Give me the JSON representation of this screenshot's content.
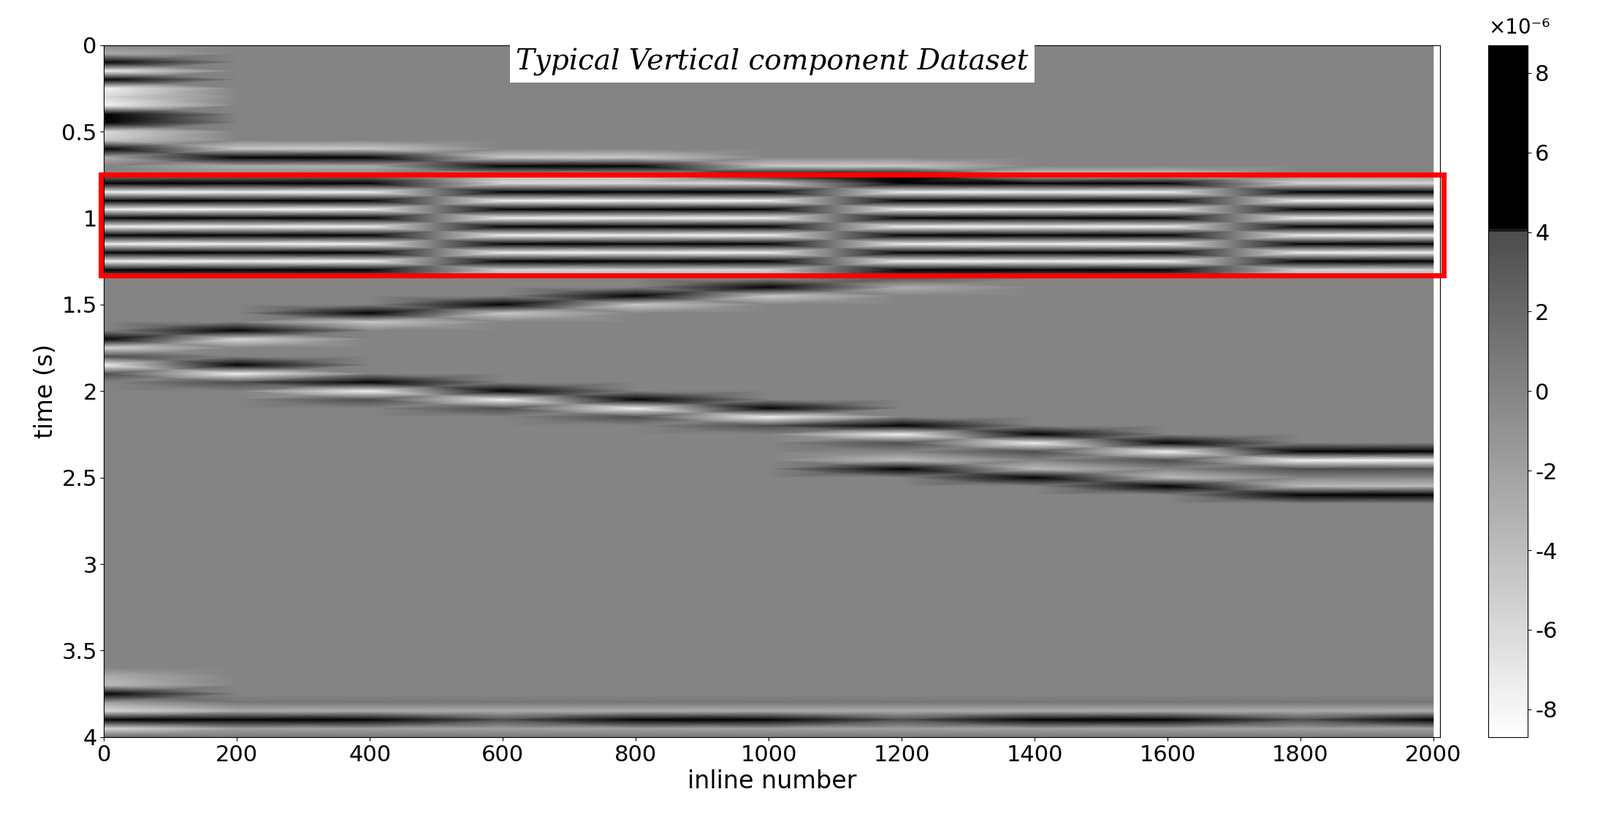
{
  "chart_data": {
    "type": "heatmap",
    "title": "Typical Vertical component Dataset",
    "x_label": "inline number",
    "y_label": "time (s)",
    "x": [
      0,
      200,
      400,
      600,
      800,
      1000,
      1200,
      1400,
      1600,
      1800,
      2000
    ],
    "y": [
      0,
      0.05,
      0.1,
      0.15,
      0.2,
      0.25,
      0.3,
      0.35,
      0.4,
      0.45,
      0.5,
      0.55,
      0.6,
      0.65,
      0.7,
      0.75,
      0.8,
      0.85,
      0.9,
      0.95,
      1,
      1.05,
      1.1,
      1.15,
      1.2,
      1.25,
      1.3,
      1.35,
      1.4,
      1.45,
      1.5,
      1.55,
      1.6,
      1.65,
      1.7,
      1.75,
      1.8,
      1.85,
      1.9,
      1.95,
      2,
      2.05,
      2.1,
      2.15,
      2.2,
      2.25,
      2.3,
      2.35,
      2.4,
      2.45,
      2.5,
      2.55,
      2.6,
      2.65,
      2.7,
      2.75,
      2.8,
      2.85,
      2.9,
      2.95,
      3,
      3.05,
      3.1,
      3.15,
      3.2,
      3.25,
      3.3,
      3.35,
      3.4,
      3.45,
      3.5,
      3.55,
      3.6,
      3.65,
      3.7,
      3.75,
      3.8,
      3.85,
      3.9,
      3.95,
      4
    ],
    "cells": [
      [
        0,
        0,
        0,
        0,
        0,
        0,
        0,
        0,
        0,
        0,
        0
      ],
      [
        -3,
        0,
        0,
        0,
        0,
        0,
        0,
        0,
        0,
        0,
        0
      ],
      [
        8,
        0,
        0,
        0,
        0,
        0,
        0,
        0,
        0,
        0,
        0
      ],
      [
        -8,
        0,
        0,
        0,
        0,
        0,
        0,
        0,
        0,
        0,
        0
      ],
      [
        8,
        0,
        0,
        0,
        0,
        0,
        0,
        0,
        0,
        0,
        0
      ],
      [
        -8,
        0,
        0,
        0,
        0,
        0,
        0,
        0,
        0,
        0,
        0
      ],
      [
        -6,
        0,
        0,
        0,
        0,
        0,
        0,
        0,
        0,
        0,
        0
      ],
      [
        -8,
        0,
        0,
        0,
        0,
        0,
        0,
        0,
        0,
        0,
        0
      ],
      [
        6,
        0,
        0,
        0,
        0,
        0,
        0,
        0,
        0,
        0,
        0
      ],
      [
        8,
        0,
        0,
        0,
        0,
        0,
        0,
        0,
        0,
        0,
        0
      ],
      [
        -6,
        0,
        0,
        0,
        0,
        0,
        0,
        0,
        0,
        0,
        0
      ],
      [
        -5,
        0,
        0,
        0,
        0,
        0,
        0,
        0,
        0,
        0,
        0
      ],
      [
        8,
        -5,
        -5,
        0,
        0,
        0,
        0,
        0,
        0,
        0,
        0
      ],
      [
        -3,
        8,
        8,
        -5,
        -5,
        0,
        0,
        0,
        0,
        0,
        0
      ],
      [
        0,
        -3,
        -3,
        8,
        8,
        -5,
        -5,
        0,
        0,
        0,
        0
      ],
      [
        0,
        0,
        0,
        -3,
        -3,
        8,
        8,
        -5,
        -5,
        0,
        0
      ],
      [
        6,
        6,
        6,
        -6,
        -6,
        -6,
        6,
        8,
        8,
        -6,
        -6
      ],
      [
        -8,
        -8,
        -8,
        8,
        8,
        8,
        -8,
        -8,
        -8,
        8,
        8
      ],
      [
        8,
        8,
        8,
        -8,
        -8,
        -8,
        8,
        8,
        8,
        -8,
        -8
      ],
      [
        -8,
        -8,
        -8,
        8,
        8,
        8,
        -8,
        -8,
        -8,
        8,
        8
      ],
      [
        8,
        8,
        8,
        -8,
        -8,
        -8,
        8,
        8,
        8,
        -8,
        -8
      ],
      [
        -8,
        -8,
        -8,
        8,
        8,
        8,
        -8,
        -8,
        -8,
        8,
        8
      ],
      [
        8,
        8,
        8,
        -8,
        -8,
        -8,
        8,
        8,
        8,
        -8,
        -8
      ],
      [
        -8,
        -8,
        -8,
        8,
        8,
        8,
        -8,
        -8,
        -8,
        8,
        8
      ],
      [
        8,
        8,
        8,
        -8,
        -8,
        -8,
        8,
        8,
        8,
        -8,
        -8
      ],
      [
        -8,
        -8,
        -8,
        8,
        8,
        8,
        -8,
        -8,
        -8,
        8,
        8
      ],
      [
        6,
        6,
        6,
        -6,
        -6,
        -6,
        6,
        6,
        6,
        -6,
        -6
      ],
      [
        0,
        0,
        0,
        0,
        0,
        0,
        3,
        0,
        0,
        0,
        0
      ],
      [
        0,
        0,
        0,
        0,
        0,
        6,
        -3,
        0,
        0,
        0,
        0
      ],
      [
        0,
        0,
        0,
        0,
        6,
        -5,
        0,
        0,
        0,
        0,
        0
      ],
      [
        0,
        0,
        0,
        6,
        -5,
        0,
        0,
        0,
        0,
        0,
        0
      ],
      [
        0,
        0,
        7,
        -5,
        0,
        0,
        0,
        0,
        0,
        0,
        0
      ],
      [
        0,
        0,
        -5,
        0,
        0,
        0,
        0,
        0,
        0,
        0,
        0
      ],
      [
        0,
        8,
        0,
        0,
        0,
        0,
        0,
        0,
        0,
        0,
        0
      ],
      [
        8,
        -6,
        0,
        0,
        0,
        0,
        0,
        0,
        0,
        0,
        0
      ],
      [
        -6,
        0,
        0,
        0,
        0,
        0,
        0,
        0,
        0,
        0,
        0
      ],
      [
        4,
        0,
        0,
        0,
        0,
        0,
        0,
        0,
        0,
        0,
        0
      ],
      [
        -8,
        8,
        0,
        0,
        0,
        0,
        0,
        0,
        0,
        0,
        0
      ],
      [
        4,
        -8,
        0,
        0,
        0,
        0,
        0,
        0,
        0,
        0,
        0
      ],
      [
        0,
        4,
        8,
        0,
        0,
        0,
        0,
        0,
        0,
        0,
        0
      ],
      [
        0,
        0,
        -8,
        8,
        0,
        0,
        0,
        0,
        0,
        0,
        0
      ],
      [
        0,
        0,
        4,
        -8,
        8,
        0,
        0,
        0,
        0,
        0,
        0
      ],
      [
        0,
        0,
        0,
        4,
        -8,
        8,
        0,
        0,
        0,
        0,
        0
      ],
      [
        0,
        0,
        0,
        0,
        4,
        -8,
        0,
        0,
        0,
        0,
        0
      ],
      [
        0,
        0,
        0,
        0,
        0,
        4,
        8,
        0,
        0,
        0,
        0
      ],
      [
        0,
        0,
        0,
        0,
        0,
        0,
        -8,
        8,
        0,
        0,
        0
      ],
      [
        0,
        0,
        0,
        0,
        0,
        0,
        4,
        -8,
        8,
        0,
        0
      ],
      [
        0,
        0,
        0,
        0,
        0,
        0,
        0,
        4,
        -8,
        8,
        8
      ],
      [
        0,
        0,
        0,
        0,
        0,
        0,
        -4,
        0,
        4,
        -8,
        -8
      ],
      [
        0,
        0,
        0,
        0,
        0,
        0,
        5,
        -4,
        0,
        4,
        4
      ],
      [
        0,
        0,
        0,
        0,
        0,
        0,
        0,
        5,
        -4,
        0,
        0
      ],
      [
        0,
        0,
        0,
        0,
        0,
        0,
        0,
        0,
        5,
        -4,
        -4
      ],
      [
        0,
        0,
        0,
        0,
        0,
        0,
        0,
        0,
        0,
        5,
        5
      ],
      [
        0,
        0,
        0,
        0,
        0,
        0,
        0,
        0,
        0,
        0,
        0
      ],
      [
        0,
        0,
        0,
        0,
        0,
        0,
        0,
        0,
        0,
        0,
        0
      ],
      [
        0,
        0,
        0,
        0,
        0,
        0,
        0,
        0,
        0,
        0,
        0
      ],
      [
        0,
        0,
        0,
        0,
        0,
        0,
        0,
        0,
        0,
        0,
        0
      ],
      [
        0,
        0,
        0,
        0,
        0,
        0,
        0,
        0,
        0,
        0,
        0
      ],
      [
        0,
        0,
        0,
        0,
        0,
        0,
        0,
        0,
        0,
        0,
        0
      ],
      [
        0,
        0,
        0,
        0,
        0,
        0,
        0,
        0,
        0,
        0,
        0
      ],
      [
        0,
        0,
        0,
        0,
        0,
        0,
        0,
        0,
        0,
        0,
        0
      ],
      [
        0,
        0,
        0,
        0,
        0,
        0,
        0,
        0,
        0,
        0,
        0
      ],
      [
        0,
        0,
        0,
        0,
        0,
        0,
        0,
        0,
        0,
        0,
        0
      ],
      [
        0,
        0,
        0,
        0,
        0,
        0,
        0,
        0,
        0,
        0,
        0
      ],
      [
        0,
        0,
        0,
        0,
        0,
        0,
        0,
        0,
        0,
        0,
        0
      ],
      [
        0,
        0,
        0,
        0,
        0,
        0,
        0,
        0,
        0,
        0,
        0
      ],
      [
        0,
        0,
        0,
        0,
        0,
        0,
        0,
        0,
        0,
        0,
        0
      ],
      [
        0,
        0,
        0,
        0,
        0,
        0,
        0,
        0,
        0,
        0,
        0
      ],
      [
        0,
        0,
        0,
        0,
        0,
        0,
        0,
        0,
        0,
        0,
        0
      ],
      [
        0,
        0,
        0,
        0,
        0,
        0,
        0,
        0,
        0,
        0,
        0
      ],
      [
        0,
        0,
        0,
        0,
        0,
        0,
        0,
        0,
        0,
        0,
        0
      ],
      [
        0,
        0,
        0,
        0,
        0,
        0,
        0,
        0,
        0,
        0,
        0
      ],
      [
        0,
        0,
        0,
        0,
        0,
        0,
        0,
        0,
        0,
        0,
        0
      ],
      [
        -3,
        0,
        0,
        0,
        0,
        0,
        0,
        0,
        0,
        0,
        0
      ],
      [
        -4,
        0,
        0,
        0,
        0,
        0,
        0,
        0,
        0,
        0,
        0
      ],
      [
        6,
        0,
        0,
        0,
        0,
        0,
        0,
        0,
        0,
        0,
        0
      ],
      [
        -2,
        1,
        1,
        1,
        1,
        1,
        1,
        1,
        1,
        1,
        1
      ],
      [
        -6,
        -3,
        -3,
        -3,
        -3,
        -3,
        -3,
        -3,
        -3,
        -3,
        -3
      ],
      [
        8,
        5,
        6,
        4,
        5,
        7,
        4,
        5,
        6,
        4,
        5
      ],
      [
        -6,
        -2,
        -2,
        -2,
        -2,
        -2,
        -2,
        -2,
        -2,
        -2,
        -2
      ],
      [
        2,
        1,
        1,
        1,
        1,
        1,
        1,
        1,
        1,
        1,
        1
      ]
    ],
    "xlim": [
      0,
      2010
    ],
    "xticks": [
      0,
      200,
      400,
      600,
      800,
      1000,
      1200,
      1400,
      1600,
      1800,
      2000
    ],
    "ylim": [
      4,
      0
    ],
    "yticks": [
      0,
      0.5,
      1,
      1.5,
      2,
      2.5,
      3,
      3.5,
      4
    ],
    "colorbar": {
      "range": [
        -8.7,
        8.7
      ],
      "ticks": [
        -8,
        -6,
        -4,
        -2,
        0,
        2,
        4,
        6,
        8
      ],
      "scale_label": "×10⁻⁶"
    },
    "highlight": {
      "xlim": [
        -5,
        2015
      ],
      "ylim": [
        0.75,
        1.33
      ],
      "color": "red"
    }
  }
}
